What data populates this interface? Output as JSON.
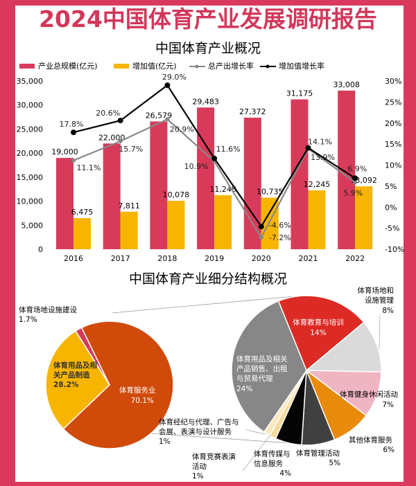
{
  "title": "2024中国体育产业发展调研报告",
  "colors": {
    "border": "#d9395c",
    "total": "#d83b5a",
    "added": "#f7b500",
    "output_rate": "#888888",
    "added_rate": "#000000"
  },
  "chart_data": [
    {
      "type": "bar",
      "title": "中国体育产业概况",
      "categories": [
        "2016",
        "2017",
        "2018",
        "2019",
        "2020",
        "2021",
        "2022"
      ],
      "series": [
        {
          "name": "产业总规模(亿元)",
          "type": "bar",
          "axis": "left",
          "values": [
            19000,
            22000,
            26579,
            29483,
            27372,
            31175,
            33008
          ],
          "labels": [
            "19,000",
            "22,000",
            "26,579",
            "29,483",
            "27,372",
            "31,175",
            "33,008"
          ]
        },
        {
          "name": "增加值(亿元)",
          "type": "bar",
          "axis": "left",
          "values": [
            6475,
            7811,
            10078,
            11248,
            10735,
            12245,
            13092
          ],
          "labels": [
            "6,475",
            "7,811",
            "10,078",
            "11,248",
            "10,735",
            "12,245",
            "13,092"
          ]
        },
        {
          "name": "总产出增长率",
          "type": "line",
          "axis": "right",
          "values": [
            11.1,
            15.7,
            20.9,
            10.9,
            -7.2,
            13.9,
            5.9
          ],
          "labels": [
            "11.1%",
            "15.7%",
            "20.9%",
            "10.9%",
            "-7.2%",
            "13.9%",
            "5.9%"
          ]
        },
        {
          "name": "增加值增长率",
          "type": "line",
          "axis": "right",
          "values": [
            17.8,
            20.6,
            29.0,
            11.6,
            -4.6,
            14.1,
            6.9
          ],
          "labels": [
            "17.8%",
            "20.6%",
            "29.0%",
            "11.6%",
            "-4.6%",
            "14.1%",
            "6.9%"
          ]
        }
      ],
      "ylim_left": [
        0,
        35000
      ],
      "yticks_left": [
        "0",
        "5,000",
        "10,000",
        "15,000",
        "20,000",
        "25,000",
        "30,000",
        "35,000"
      ],
      "ylim_right": [
        -10,
        30
      ],
      "yticks_right": [
        "-10%",
        "-5%",
        "0%",
        "5%",
        "10%",
        "15%",
        "20%",
        "25%",
        "30%"
      ],
      "legend": "top",
      "grid": false
    },
    {
      "type": "pie",
      "title": "中国体育产业细分结构概况",
      "slices": [
        {
          "label": "体育服务业",
          "value": 70.1,
          "display": "70.1%",
          "color": "#d04a0a"
        },
        {
          "label": "体育用品及相关产品制造",
          "label_lines": [
            "体育用品及相",
            "关产品制造"
          ],
          "value": 28.2,
          "display": "28.2%",
          "color": "#f7b500"
        },
        {
          "label": "体育场地设施建设",
          "value": 1.7,
          "display": "1.7%",
          "color": "#d83b5a"
        }
      ]
    },
    {
      "type": "pie",
      "title": "",
      "slices": [
        {
          "label": "体育教育与培训",
          "value": 14,
          "display": "14%",
          "color": "#dc2b25"
        },
        {
          "label": "体育场地和设施管理",
          "label_lines": [
            "体育场地和",
            "设施管理"
          ],
          "value": 8,
          "display": "8%",
          "color": "#dadada"
        },
        {
          "label": "体育健身休闲活动",
          "value": 7,
          "display": "7%",
          "color": "#f0b5c3"
        },
        {
          "label": "其他体育服务",
          "value": 6,
          "display": "6%",
          "color": "#e88a0b"
        },
        {
          "label": "体育管理活动",
          "value": 5,
          "display": "5%",
          "color": "#404040"
        },
        {
          "label": "体育传媒与信息服务",
          "label_lines": [
            "体育传媒与",
            "信息服务"
          ],
          "value": 4,
          "display": "4%",
          "color": "#050505"
        },
        {
          "label": "体育竞赛表演活动",
          "label_lines": [
            "体育竞赛表演",
            "活动"
          ],
          "value": 1,
          "display": "1%",
          "color": "#f6d99d"
        },
        {
          "label": "体育经纪与代理、广告与会展、表演与设计服务",
          "label_lines": [
            "体育经纪与代理、广告与",
            "会展、表演与设计服务"
          ],
          "value": 1,
          "display": "1%",
          "color": "#fbe8c0"
        },
        {
          "label": "体育用品及相关产品销售、出租与贸易代理",
          "label_lines": [
            "体育用品及相关",
            "产品销售、出租",
            "与贸易代理"
          ],
          "value": 24,
          "display": "24%",
          "color": "#878787"
        }
      ]
    }
  ]
}
